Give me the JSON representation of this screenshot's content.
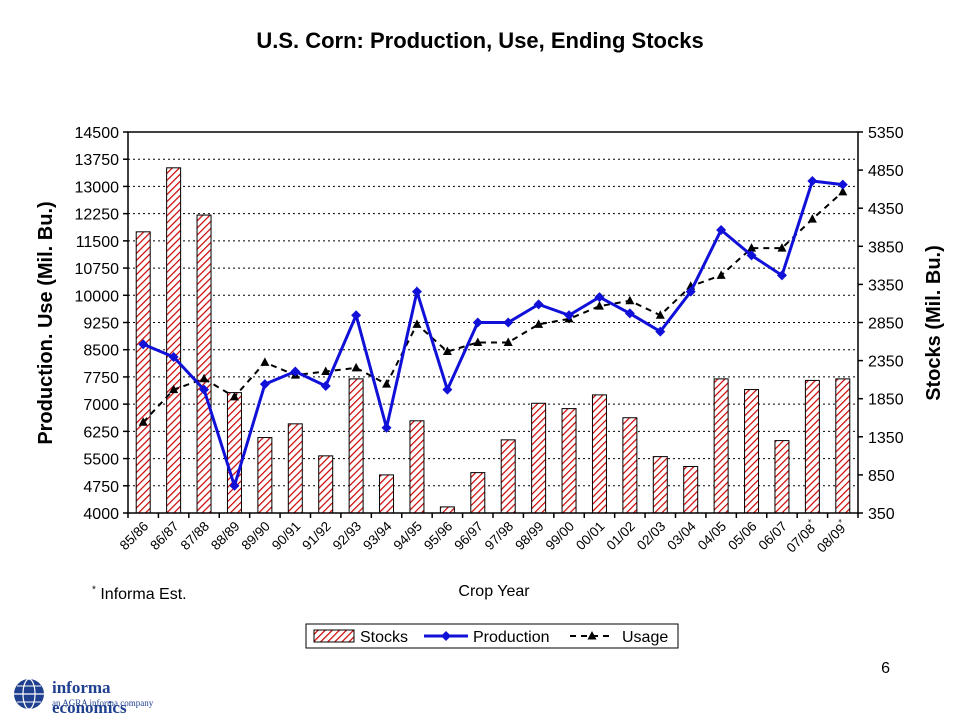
{
  "chart_data": {
    "type": "bar+line",
    "title": "U.S. Corn: Production, Use, Ending Stocks",
    "xlabel": "Crop Year",
    "ylabel_left": "Production. Use (Mil. Bu.)",
    "ylabel_right": "Stocks (Mil. Bu.)",
    "categories": [
      "85/86",
      "86/87",
      "87/88",
      "88/89",
      "89/90",
      "90/91",
      "91/92",
      "92/93",
      "93/94",
      "94/95",
      "95/96",
      "96/97",
      "97/98",
      "98/99",
      "99/00",
      "00/01",
      "01/02",
      "02/03",
      "03/04",
      "04/05",
      "05/06",
      "06/07",
      "07/08*",
      "08/09*"
    ],
    "y_left": {
      "min": 4000,
      "max": 14500,
      "ticks": [
        4000,
        4750,
        5500,
        6250,
        7000,
        7750,
        8500,
        9250,
        10000,
        10750,
        11500,
        12250,
        13000,
        13750,
        14500
      ]
    },
    "y_right": {
      "min": 350,
      "max": 5350,
      "ticks": [
        350,
        850,
        1350,
        1850,
        2350,
        2850,
        3350,
        3850,
        4350,
        4850,
        5350
      ]
    },
    "grid": true,
    "legend_position": "bottom",
    "series": [
      {
        "name": "Stocks",
        "type": "bar",
        "axis": "right",
        "color": "#cc0000",
        "values": [
          4040,
          4880,
          4260,
          1930,
          1340,
          1520,
          1100,
          2110,
          850,
          1560,
          430,
          880,
          1310,
          1790,
          1720,
          1900,
          1600,
          1090,
          960,
          2110,
          1970,
          1300,
          2090,
          2110
        ]
      },
      {
        "name": "Production",
        "type": "line",
        "axis": "left",
        "color": "#1010d8",
        "values": [
          8650,
          8300,
          7400,
          4750,
          7550,
          7900,
          7500,
          9450,
          6350,
          10100,
          7400,
          9250,
          9250,
          9750,
          9450,
          9950,
          9500,
          9000,
          10100,
          11800,
          11100,
          10550,
          13150,
          13050
        ]
      },
      {
        "name": "Usage",
        "type": "line",
        "axis": "left",
        "color": "#000000",
        "values": [
          6500,
          7400,
          7700,
          7200,
          8150,
          7800,
          7900,
          8000,
          7550,
          9200,
          8450,
          8700,
          8700,
          9200,
          9350,
          9700,
          9850,
          9450,
          10250,
          10550,
          11300,
          11300,
          12100,
          12850
        ]
      }
    ]
  },
  "footnote": {
    "marker": "*",
    "text": " Informa Est."
  },
  "page_number": "6",
  "logo": {
    "name": "informa economics",
    "tagline": "an AGRA informa company"
  }
}
